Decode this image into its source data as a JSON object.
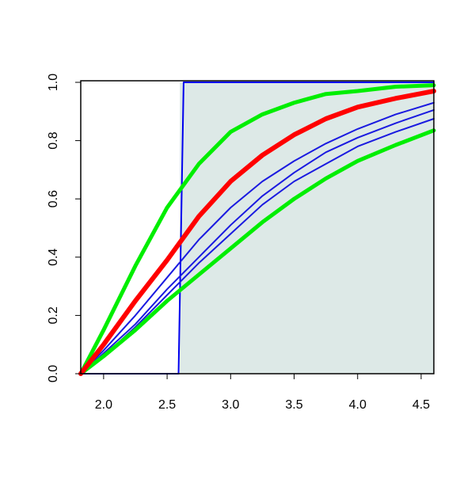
{
  "chart_data": {
    "type": "line",
    "x": [
      1.82,
      2.0,
      2.25,
      2.5,
      2.75,
      3.0,
      3.25,
      3.5,
      3.75,
      4.0,
      4.3,
      4.6
    ],
    "xlim": [
      1.82,
      4.6
    ],
    "ylim": [
      0,
      1
    ],
    "xticks": [
      {
        "value": 2,
        "label": "2.0"
      },
      {
        "value": 2.5,
        "label": "2.5"
      },
      {
        "value": 3,
        "label": "3.0"
      },
      {
        "value": 3.5,
        "label": "3.5"
      },
      {
        "value": 4,
        "label": "4.0"
      },
      {
        "value": 4.5,
        "label": "4.5"
      }
    ],
    "yticks": [
      {
        "value": 0,
        "label": "0.0"
      },
      {
        "value": 0.2,
        "label": "0.2"
      },
      {
        "value": 0.4,
        "label": "0.4"
      },
      {
        "value": 0.6,
        "label": "0.6"
      },
      {
        "value": 0.8,
        "label": "0.8"
      },
      {
        "value": 1,
        "label": "1.0"
      }
    ],
    "shaded_region": {
      "x": [
        2.6,
        4.6
      ],
      "color": "#dde9e7"
    },
    "series": [
      {
        "color": "#0000ee",
        "width": 2,
        "x": [
          1.82,
          2.59,
          2.63,
          4.6
        ],
        "values": [
          0,
          0,
          1,
          1
        ]
      },
      {
        "color": "#1a1ae0",
        "width": 2,
        "values": [
          0,
          0.08,
          0.2,
          0.33,
          0.46,
          0.57,
          0.66,
          0.73,
          0.79,
          0.84,
          0.89,
          0.93
        ]
      },
      {
        "color": "#1a1ae0",
        "width": 2,
        "values": [
          0,
          0.07,
          0.17,
          0.29,
          0.4,
          0.51,
          0.61,
          0.69,
          0.76,
          0.81,
          0.86,
          0.905
        ]
      },
      {
        "color": "#1a1ae0",
        "width": 2,
        "values": [
          0,
          0.06,
          0.16,
          0.27,
          0.38,
          0.48,
          0.58,
          0.66,
          0.72,
          0.78,
          0.83,
          0.875
        ]
      },
      {
        "color": "#00ee00",
        "width": 5,
        "values": [
          0,
          0.15,
          0.37,
          0.57,
          0.72,
          0.83,
          0.89,
          0.93,
          0.96,
          0.97,
          0.985,
          0.99
        ]
      },
      {
        "color": "#00ee00",
        "width": 5,
        "values": [
          0,
          0.06,
          0.15,
          0.25,
          0.34,
          0.43,
          0.52,
          0.6,
          0.67,
          0.73,
          0.785,
          0.835
        ]
      },
      {
        "color": "#ff0000",
        "width": 6,
        "values": [
          0,
          0.1,
          0.25,
          0.39,
          0.54,
          0.66,
          0.75,
          0.82,
          0.875,
          0.915,
          0.945,
          0.97
        ]
      }
    ]
  }
}
